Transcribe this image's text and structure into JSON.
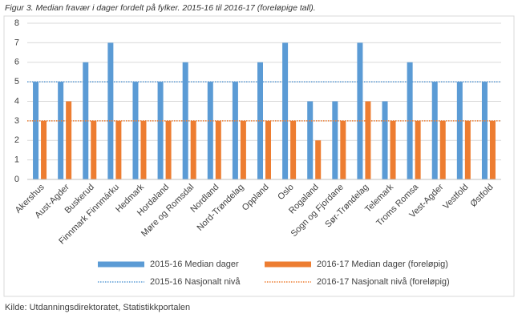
{
  "chart_data": {
    "type": "bar",
    "title": "Figur 3. Median fravær i dager fordelt på fylker. 2015-16 til 2016-17 (foreløpige tall).",
    "source": "Kilde: Utdanningsdirektoratet, Statistikkportalen",
    "categories": [
      "Akershus",
      "Aust-Agder",
      "Buskerud",
      "Finnmark Finnmárku",
      "Hedmark",
      "Hordaland",
      "Møre og Romsdal",
      "Nordland",
      "Nord-Trøndelag",
      "Oppland",
      "Oslo",
      "Rogaland",
      "Sogn og Fjordane",
      "Sør-Trøndelag",
      "Telemark",
      "Troms Romsa",
      "Vest-Agder",
      "Vestfold",
      "Østfold"
    ],
    "series": [
      {
        "name": "2015-16 Median dager",
        "color": "#5b9bd5",
        "values": [
          5,
          5,
          6,
          7,
          5,
          5,
          6,
          5,
          5,
          6,
          7,
          4,
          4,
          7,
          4,
          6,
          5,
          5,
          5
        ]
      },
      {
        "name": "2016-17 Median dager (foreløpig)",
        "color": "#ed7d31",
        "values": [
          3,
          4,
          3,
          3,
          3,
          3,
          3,
          3,
          3,
          3,
          3,
          2,
          3,
          4,
          3,
          3,
          3,
          3,
          3
        ]
      }
    ],
    "reference_lines": [
      {
        "name": "2015-16 Nasjonalt nivå",
        "color": "#5b9bd5",
        "value": 5
      },
      {
        "name": "2016-17 Nasjonalt nivå (foreløpig)",
        "color": "#ed7d31",
        "value": 3
      }
    ],
    "ylim": [
      0,
      8
    ],
    "yticks": [
      0,
      1,
      2,
      3,
      4,
      5,
      6,
      7,
      8
    ],
    "grid": true
  }
}
